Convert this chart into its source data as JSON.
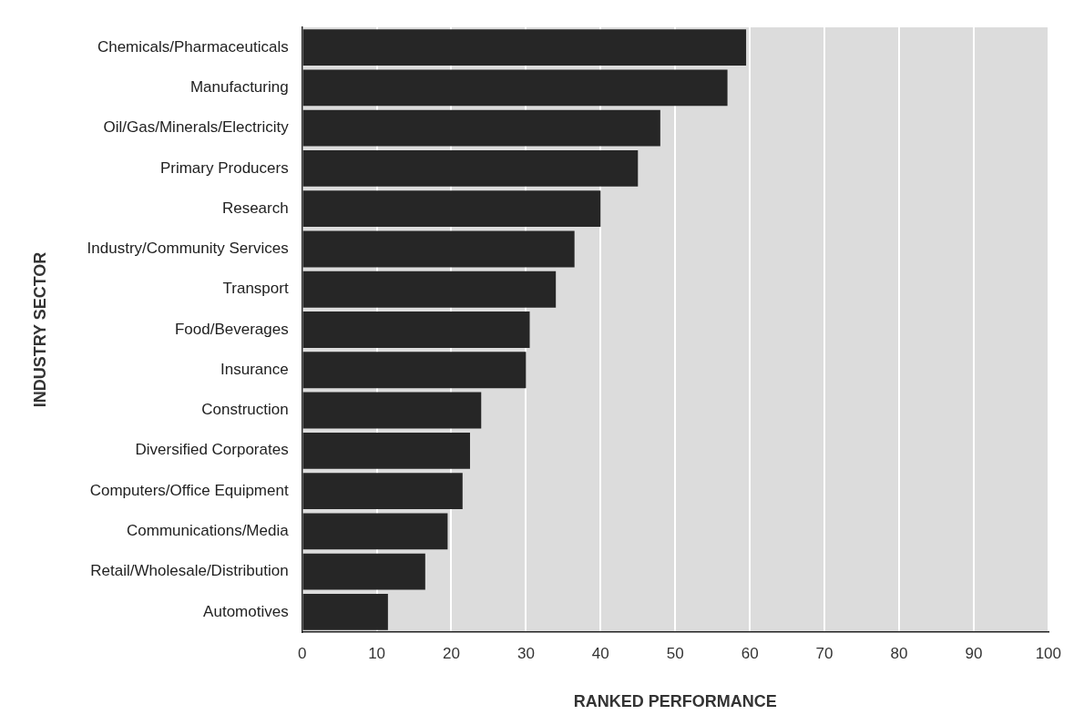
{
  "chart_data": {
    "type": "bar",
    "orientation": "horizontal",
    "xlabel": "RANKED PERFORMANCE",
    "ylabel": "INDUSTRY SECTOR",
    "categories": [
      "Chemicals/Pharmaceuticals",
      "Manufacturing",
      "Oil/Gas/Minerals/Electricity",
      "Primary Producers",
      "Research",
      "Industry/Community Services",
      "Transport",
      "Food/Beverages",
      "Insurance",
      "Construction",
      "Diversified Corporates",
      "Computers/Office Equipment",
      "Communications/Media",
      "Retail/Wholesale/Distribution",
      "Automotives"
    ],
    "values": [
      59.5,
      57,
      48,
      45,
      40,
      36.5,
      34,
      30.5,
      30,
      24,
      22.5,
      21.5,
      19.5,
      16.5,
      11.5
    ],
    "color": "#262626",
    "xlim": [
      0,
      100
    ],
    "xticks": [
      0,
      10,
      20,
      30,
      40,
      50,
      60,
      70,
      80,
      90,
      100
    ],
    "grid": "x",
    "legend": false
  }
}
